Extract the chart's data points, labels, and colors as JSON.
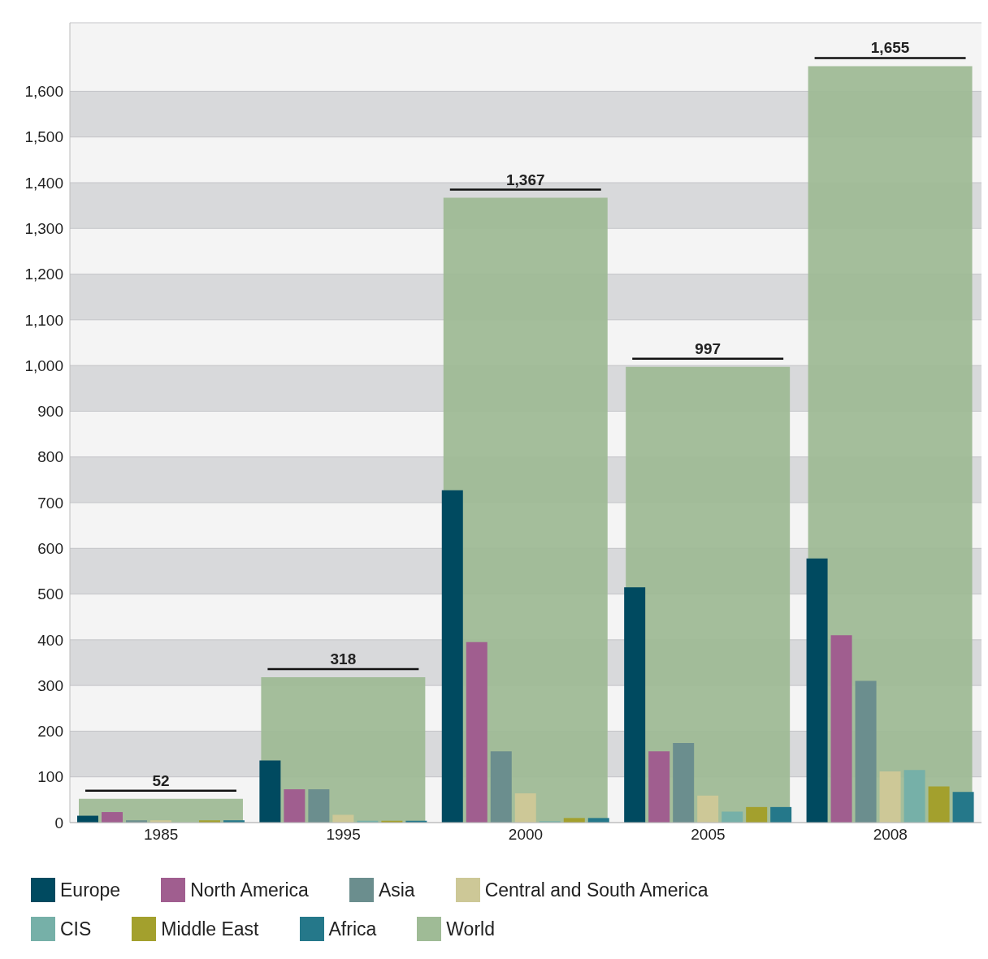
{
  "chart_data": {
    "type": "bar",
    "categories": [
      "1985",
      "1995",
      "2000",
      "2005",
      "2008"
    ],
    "series": [
      {
        "name": "Europe",
        "color": "#004a60",
        "values": [
          15,
          136,
          727,
          515,
          578
        ]
      },
      {
        "name": "North America",
        "color": "#a05e8f",
        "values": [
          23,
          73,
          395,
          156,
          410
        ]
      },
      {
        "name": "Asia",
        "color": "#6b8e8e",
        "values": [
          5,
          73,
          156,
          174,
          310
        ]
      },
      {
        "name": "Central and South America",
        "color": "#cdc897",
        "values": [
          5,
          17,
          64,
          59,
          112
        ]
      },
      {
        "name": "CIS",
        "color": "#76b0a8",
        "values": [
          0,
          4,
          3,
          24,
          115
        ]
      },
      {
        "name": "Middle East",
        "color": "#a3a02d",
        "values": [
          5,
          4,
          10,
          34,
          79
        ]
      },
      {
        "name": "Africa",
        "color": "#25788a",
        "values": [
          5,
          4,
          10,
          34,
          67
        ]
      },
      {
        "name": "World",
        "color": "#9fbb96",
        "values": [
          52,
          318,
          1367,
          997,
          1655
        ],
        "value_labels": [
          "52",
          "318",
          "1,367",
          "997",
          "1,655"
        ]
      }
    ],
    "ylim": [
      0,
      1750
    ],
    "yticks": [
      0,
      100,
      200,
      300,
      400,
      500,
      600,
      700,
      800,
      900,
      {
        "value": 1000,
        "label": "1,000"
      },
      {
        "value": 1100,
        "label": "1,100"
      },
      {
        "value": 1200,
        "label": "1,200"
      },
      {
        "value": 1300,
        "label": "1,300"
      },
      {
        "value": 1400,
        "label": "1,400"
      },
      {
        "value": 1500,
        "label": "1,500"
      },
      {
        "value": 1600,
        "label": "1,600"
      }
    ],
    "grid": "y",
    "legend": "bottom"
  }
}
